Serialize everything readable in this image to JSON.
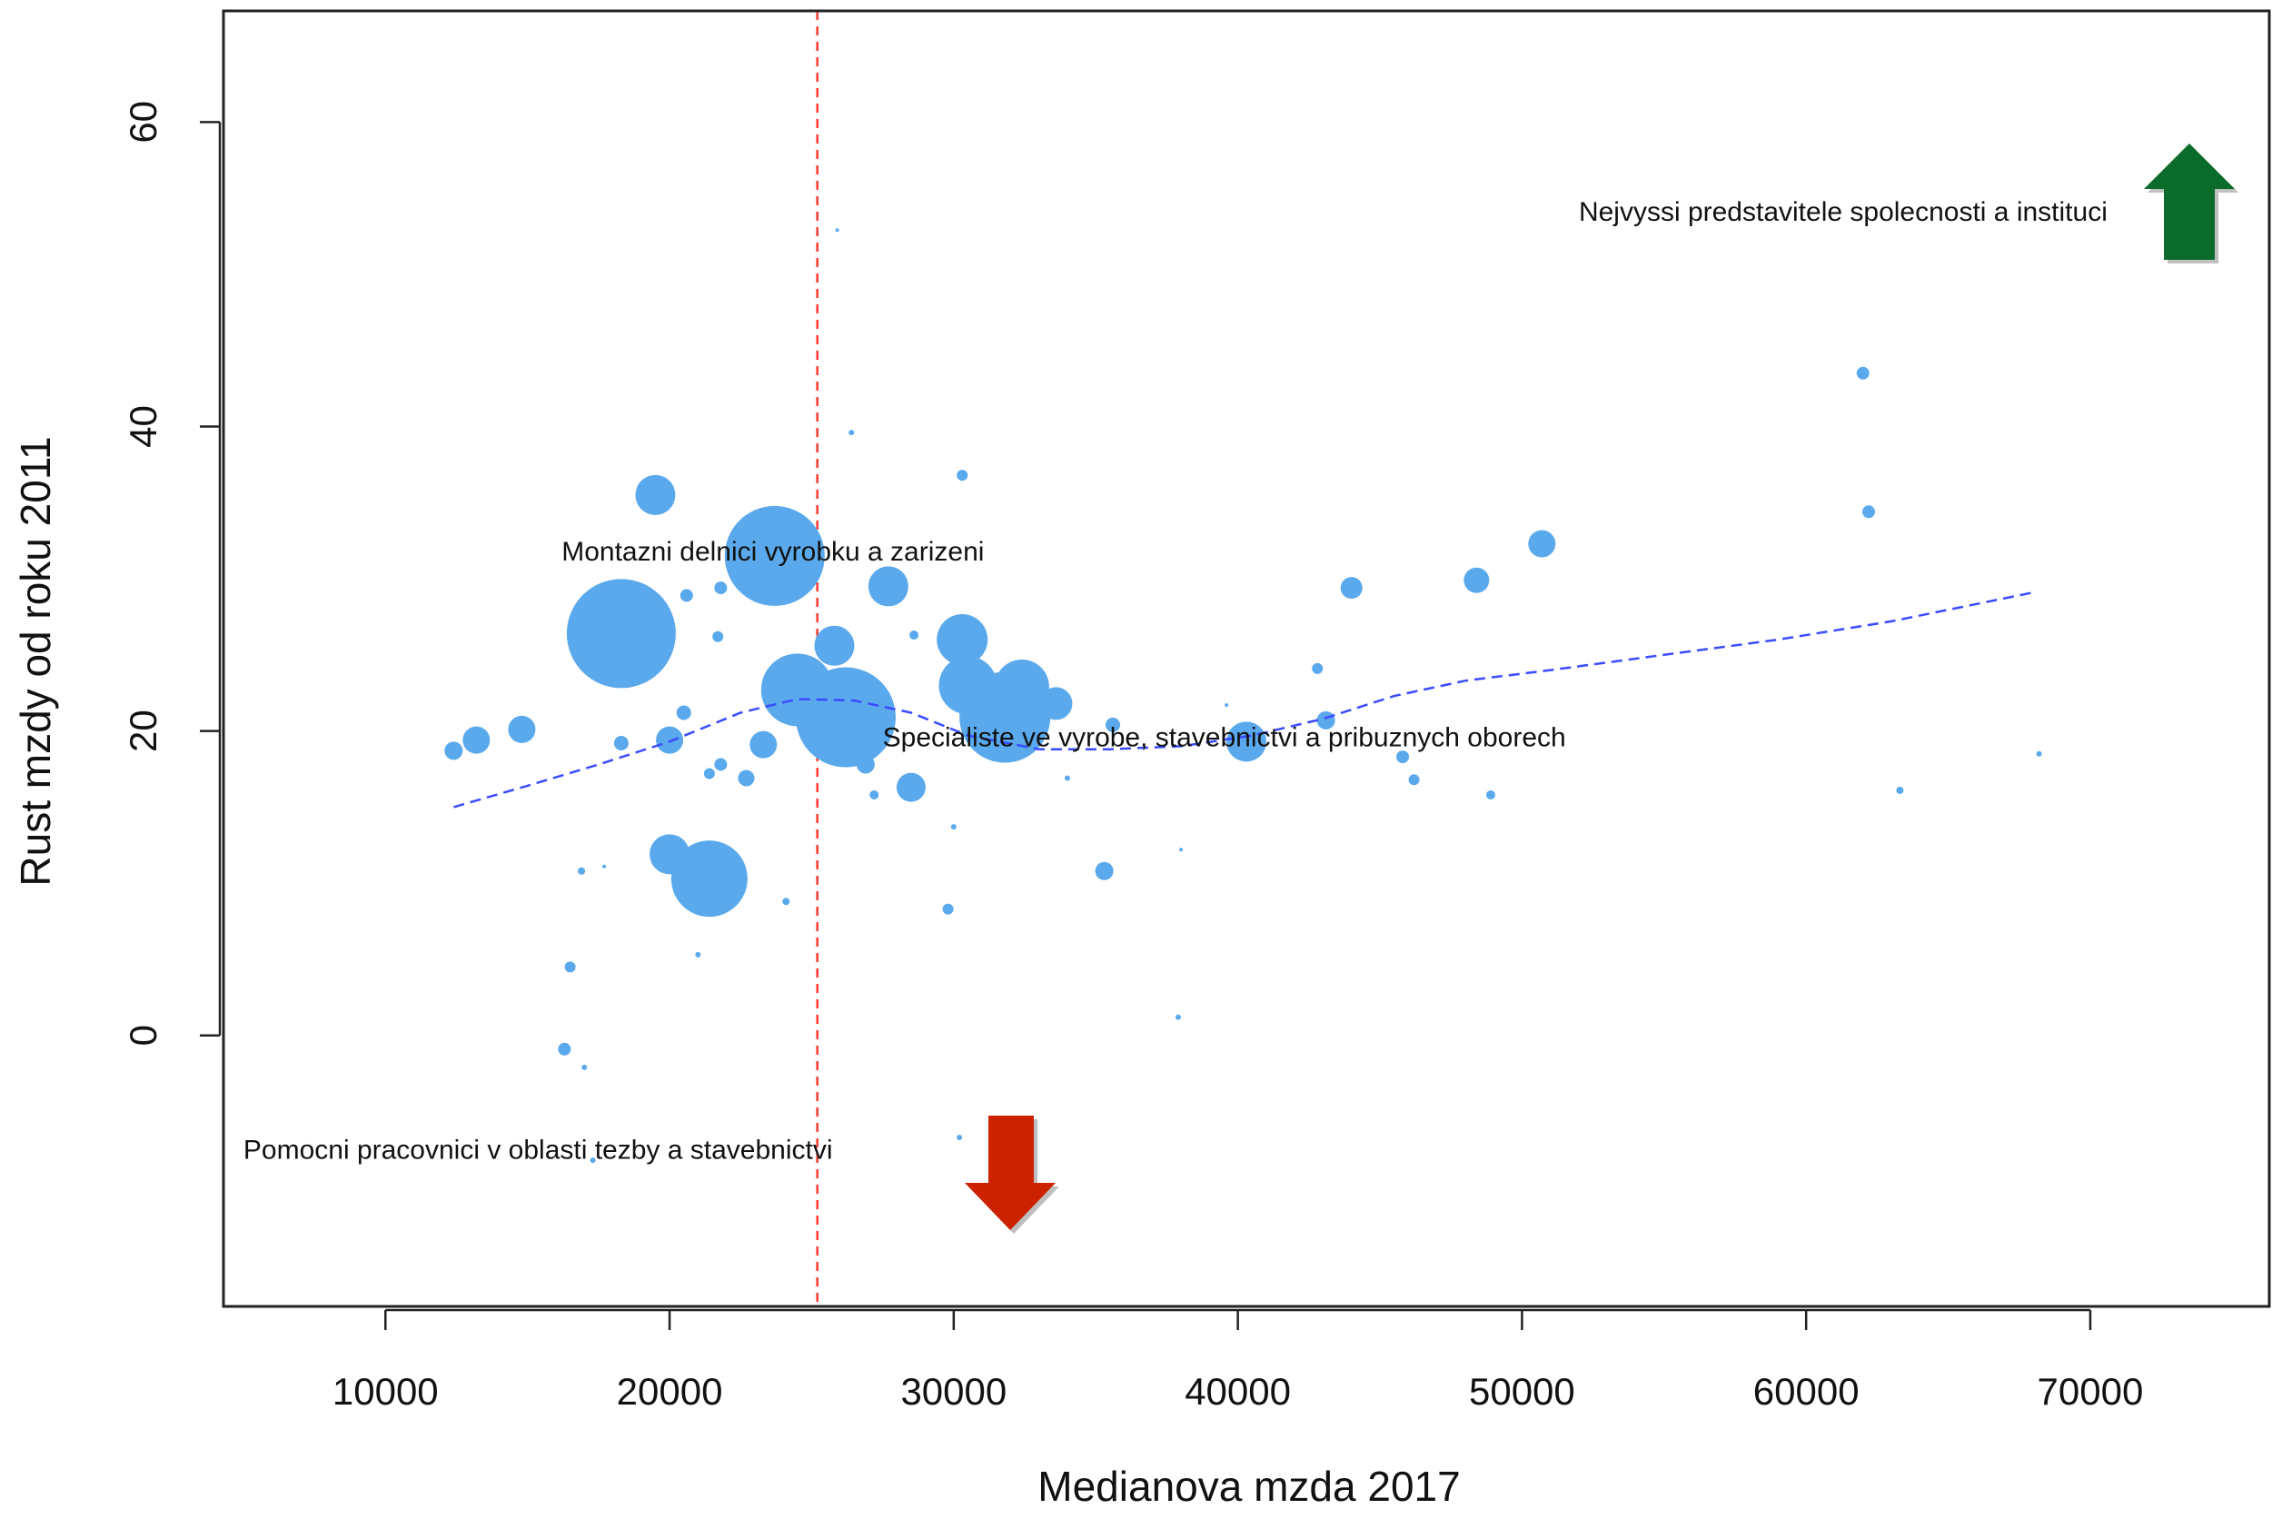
{
  "chart_data": {
    "type": "scatter",
    "title": "",
    "xlabel": "Medianova mzda 2017",
    "ylabel": "Rust mzdy od roku 2011",
    "xlim": [
      4300,
      76300
    ],
    "ylim": [
      -17.8,
      67.3
    ],
    "xticks": [
      10000,
      20000,
      30000,
      40000,
      50000,
      60000,
      70000
    ],
    "xtick_labels": [
      "10000",
      "20000",
      "30000",
      "40000",
      "50000",
      "60000",
      "70000"
    ],
    "yticks": [
      0,
      20,
      40,
      60
    ],
    "ytick_labels": [
      "0",
      "20",
      "40",
      "60"
    ],
    "grid": false,
    "point_color": "#5aa9ec",
    "reference_line": {
      "x": 25200,
      "color": "#ff3b30",
      "style": "dashed"
    },
    "trend": {
      "color": "#3a4bff",
      "style": "dashed",
      "points": [
        [
          12400,
          15.0
        ],
        [
          15000,
          16.4
        ],
        [
          17500,
          17.8
        ],
        [
          20000,
          19.3
        ],
        [
          22500,
          21.2
        ],
        [
          24500,
          22.1
        ],
        [
          26500,
          22.0
        ],
        [
          28500,
          21.2
        ],
        [
          30500,
          19.7
        ],
        [
          33000,
          18.8
        ],
        [
          35500,
          18.8
        ],
        [
          38000,
          19.0
        ],
        [
          40500,
          19.7
        ],
        [
          43000,
          20.8
        ],
        [
          45500,
          22.3
        ],
        [
          48000,
          23.3
        ],
        [
          51000,
          24.0
        ],
        [
          55000,
          25.0
        ],
        [
          59000,
          26.0
        ],
        [
          63000,
          27.2
        ],
        [
          68000,
          29.1
        ]
      ]
    },
    "points": [
      {
        "x": 12400,
        "y": 18.7,
        "size": 10
      },
      {
        "x": 13200,
        "y": 19.4,
        "size": 15
      },
      {
        "x": 14800,
        "y": 20.1,
        "size": 15
      },
      {
        "x": 16300,
        "y": -0.9,
        "size": 7
      },
      {
        "x": 16500,
        "y": 4.5,
        "size": 6
      },
      {
        "x": 16900,
        "y": 10.8,
        "size": 4
      },
      {
        "x": 17000,
        "y": -2.1,
        "size": 3
      },
      {
        "x": 17300,
        "y": -8.2,
        "size": 3
      },
      {
        "x": 17700,
        "y": 11.1,
        "size": 2
      },
      {
        "x": 18300,
        "y": 26.4,
        "size": 60
      },
      {
        "x": 18300,
        "y": 19.2,
        "size": 8
      },
      {
        "x": 19500,
        "y": 35.5,
        "size": 22
      },
      {
        "x": 20000,
        "y": 19.4,
        "size": 15
      },
      {
        "x": 20000,
        "y": 11.9,
        "size": 22
      },
      {
        "x": 20500,
        "y": 21.2,
        "size": 8
      },
      {
        "x": 20600,
        "y": 28.9,
        "size": 7
      },
      {
        "x": 21000,
        "y": 5.3,
        "size": 3
      },
      {
        "x": 21400,
        "y": 10.3,
        "size": 42
      },
      {
        "x": 21400,
        "y": 17.2,
        "size": 6
      },
      {
        "x": 21700,
        "y": 26.2,
        "size": 6
      },
      {
        "x": 21800,
        "y": 17.8,
        "size": 7
      },
      {
        "x": 21800,
        "y": 29.4,
        "size": 7
      },
      {
        "x": 22700,
        "y": 16.9,
        "size": 9
      },
      {
        "x": 23300,
        "y": 19.1,
        "size": 15
      },
      {
        "x": 23700,
        "y": 31.5,
        "size": 55
      },
      {
        "x": 24100,
        "y": 8.8,
        "size": 4
      },
      {
        "x": 24500,
        "y": 22.7,
        "size": 40
      },
      {
        "x": 25800,
        "y": 25.6,
        "size": 22
      },
      {
        "x": 25900,
        "y": 52.9,
        "size": 2
      },
      {
        "x": 26200,
        "y": 20.9,
        "size": 55
      },
      {
        "x": 26400,
        "y": 39.6,
        "size": 3
      },
      {
        "x": 26900,
        "y": 17.8,
        "size": 10
      },
      {
        "x": 27200,
        "y": 15.8,
        "size": 5
      },
      {
        "x": 27700,
        "y": 29.5,
        "size": 22
      },
      {
        "x": 28500,
        "y": 16.3,
        "size": 16
      },
      {
        "x": 28600,
        "y": 26.3,
        "size": 5
      },
      {
        "x": 29800,
        "y": 8.3,
        "size": 6
      },
      {
        "x": 30000,
        "y": 13.7,
        "size": 3
      },
      {
        "x": 30200,
        "y": -6.7,
        "size": 3
      },
      {
        "x": 30300,
        "y": 36.8,
        "size": 6
      },
      {
        "x": 30300,
        "y": 26.0,
        "size": 28
      },
      {
        "x": 30500,
        "y": 23.0,
        "size": 32
      },
      {
        "x": 31800,
        "y": 20.9,
        "size": 50
      },
      {
        "x": 32400,
        "y": 22.9,
        "size": 30
      },
      {
        "x": 33600,
        "y": 21.8,
        "size": 18
      },
      {
        "x": 34000,
        "y": 16.9,
        "size": 3
      },
      {
        "x": 35300,
        "y": 10.8,
        "size": 10
      },
      {
        "x": 35600,
        "y": 20.4,
        "size": 8
      },
      {
        "x": 37900,
        "y": 1.2,
        "size": 3
      },
      {
        "x": 38000,
        "y": 12.2,
        "size": 2
      },
      {
        "x": 39600,
        "y": 21.7,
        "size": 2
      },
      {
        "x": 40300,
        "y": 19.3,
        "size": 22
      },
      {
        "x": 42800,
        "y": 24.1,
        "size": 6
      },
      {
        "x": 43100,
        "y": 20.7,
        "size": 10
      },
      {
        "x": 44000,
        "y": 29.4,
        "size": 12
      },
      {
        "x": 45800,
        "y": 18.3,
        "size": 7
      },
      {
        "x": 46200,
        "y": 16.8,
        "size": 6
      },
      {
        "x": 48400,
        "y": 29.9,
        "size": 14
      },
      {
        "x": 48900,
        "y": 15.8,
        "size": 5
      },
      {
        "x": 50700,
        "y": 32.3,
        "size": 15
      },
      {
        "x": 62000,
        "y": 43.5,
        "size": 7
      },
      {
        "x": 62200,
        "y": 34.4,
        "size": 7
      },
      {
        "x": 63300,
        "y": 16.1,
        "size": 4
      },
      {
        "x": 68200,
        "y": 18.5,
        "size": 3
      }
    ],
    "annotations": [
      {
        "text": "Montazni delnici vyrobku a zarizeni",
        "x": 16200,
        "y": 31.2
      },
      {
        "text": "Specialiste ve vyrobe, stavebnictvi a pribuznych oborech",
        "x": 27500,
        "y": 19.0
      },
      {
        "text": "Nejvyssi predstavitele spolecnosti a instituci",
        "x": 52000,
        "y": 53.5
      },
      {
        "text": "Pomocni pracovnici v oblasti tezby a stavebnictvi",
        "x": 5000,
        "y": -8.1
      }
    ],
    "arrows": [
      {
        "direction": "up",
        "color": "#0b6b2a",
        "label": "up-arrow"
      },
      {
        "direction": "down",
        "color": "#cc2200",
        "label": "down-arrow"
      }
    ]
  }
}
